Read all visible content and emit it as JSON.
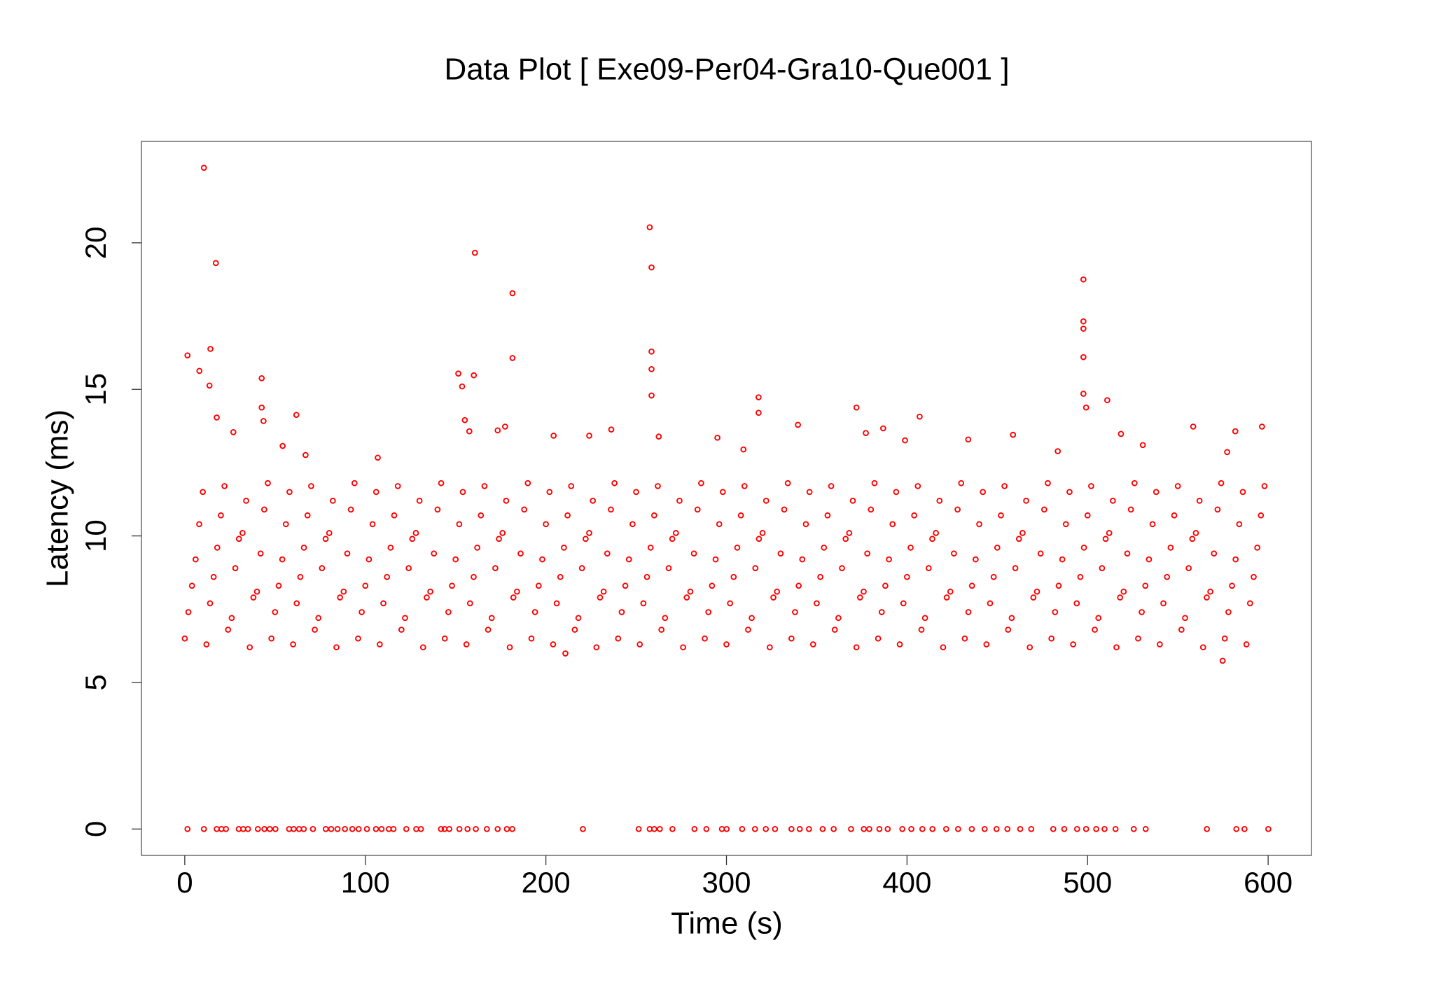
{
  "chart_data": {
    "type": "scatter",
    "title": "Data Plot [ Exe09-Per04-Gra10-Que001 ]",
    "x_label": "Time (s)",
    "y_label": "Latency (ms)",
    "color": "#ff0000",
    "xlim": [
      -24,
      624
    ],
    "xticks": [
      0,
      100,
      200,
      300,
      400,
      500,
      600
    ],
    "ylim": [
      -0.9,
      23.46
    ],
    "yticks": [
      0,
      5,
      10,
      15,
      20
    ],
    "x": [
      0,
      2,
      4,
      6,
      8,
      10,
      12,
      14,
      16,
      18,
      20,
      22,
      24,
      26,
      28,
      30,
      32,
      34,
      36,
      38,
      40,
      42,
      44,
      46,
      48,
      50,
      52,
      54,
      56,
      58,
      60,
      62,
      64,
      66,
      68,
      70,
      72,
      74,
      76,
      78,
      80,
      82,
      84,
      86,
      88,
      90,
      92,
      94,
      96,
      98,
      100,
      102,
      104,
      106,
      108,
      110,
      112,
      114,
      116,
      118,
      120,
      122,
      124,
      126,
      128,
      130,
      132,
      134,
      136,
      138,
      140,
      142,
      144,
      146,
      148,
      150,
      152,
      154,
      156,
      158,
      160,
      162,
      164,
      166,
      168,
      170,
      172,
      174,
      176,
      178,
      180,
      182,
      184,
      186,
      188,
      190,
      192,
      194,
      196,
      198,
      200,
      202,
      204,
      206,
      208,
      210,
      212,
      214,
      216,
      218,
      220,
      222,
      224,
      226,
      228,
      230,
      232,
      234,
      236,
      238,
      240,
      242,
      244,
      246,
      248,
      250,
      252,
      254,
      256,
      258,
      260,
      262,
      264,
      266,
      268,
      270,
      272,
      274,
      276,
      278,
      280,
      282,
      284,
      286,
      288,
      290,
      292,
      294,
      296,
      298,
      300,
      302,
      304,
      306,
      308,
      310,
      312,
      314,
      316,
      318,
      320,
      322,
      324,
      326,
      328,
      330,
      332,
      334,
      336,
      338,
      340,
      342,
      344,
      346,
      348,
      350,
      352,
      354,
      356,
      358,
      360,
      362,
      364,
      366,
      368,
      370,
      372,
      374,
      376,
      378,
      380,
      382,
      384,
      386,
      388,
      390,
      392,
      394,
      396,
      398,
      400,
      402,
      404,
      406,
      408,
      410,
      412,
      414,
      416,
      418,
      420,
      422,
      424,
      426,
      428,
      430,
      432,
      434,
      436,
      438,
      440,
      442,
      444,
      446,
      448,
      450,
      452,
      454,
      456,
      458,
      460,
      462,
      464,
      466,
      468,
      470,
      472,
      474,
      476,
      478,
      480,
      482,
      484,
      486,
      488,
      490,
      492,
      494,
      496,
      498,
      500,
      502,
      504,
      506,
      508,
      510,
      512,
      514,
      516,
      518,
      520,
      522,
      524,
      526,
      528,
      530,
      532,
      534,
      536,
      538,
      540,
      542,
      544,
      546,
      548,
      550,
      552,
      554,
      556,
      558,
      560,
      562,
      564,
      566,
      568,
      570,
      572,
      574,
      576,
      578,
      580,
      582,
      584,
      586,
      588,
      590,
      592,
      594,
      596,
      598,
      10.6,
      17.2,
      14.2,
      1.5,
      8.1,
      13.7,
      42.6,
      42.6,
      43.6,
      61.8,
      17.7,
      26.9,
      54.2,
      66.9,
      106.9,
      257.5,
      258.5,
      258.5,
      258.5,
      258.5,
      160.7,
      181.5,
      181.5,
      151.5,
      160.1,
      153.6,
      155.1,
      157.6,
      177.4,
      173.3,
      262.5,
      236.2,
      204.3,
      224.0,
      497.7,
      497.7,
      497.7,
      497.7,
      497.7,
      499.2,
      510.9,
      317.8,
      317.8,
      372.0,
      339.6,
      407.0,
      377.2,
      386.8,
      458.7,
      558.5,
      581.8,
      596.6,
      518.5,
      295.0,
      433.9,
      577.3,
      483.5,
      530.6,
      398.9,
      309.4,
      574.8,
      210.8,
      1.5,
      10.6,
      17.7,
      20.3,
      22.8,
      29.9,
      32.4,
      35.0,
      40.5,
      44.1,
      47.1,
      50.2,
      57.8,
      60.3,
      63.3,
      65.9,
      71.0,
      78.1,
      81.1,
      84.6,
      88.7,
      92.8,
      96.3,
      100.9,
      105.9,
      109.0,
      113.0,
      115.6,
      122.7,
      128.2,
      130.8,
      141.9,
      143.9,
      146.5,
      152.1,
      156.6,
      161.2,
      167.3,
      173.3,
      178.4,
      181.4,
      220.5,
      251.4,
      257.5,
      260.0,
      263.1,
      270.1,
      282.3,
      288.9,
      297.5,
      300.1,
      308.7,
      315.8,
      321.8,
      326.9,
      336.0,
      340.6,
      345.7,
      353.3,
      359.4,
      369.0,
      376.1,
      379.1,
      384.7,
      389.3,
      397.4,
      402.4,
      408.5,
      414.1,
      421.7,
      428.3,
      435.9,
      443.0,
      449.6,
      455.6,
      462.7,
      468.8,
      481.0,
      487.1,
      494.2,
      499.2,
      504.8,
      509.4,
      515.5,
      525.6,
      532.2,
      566.1,
      582.4,
      586.9,
      600.1
    ],
    "values": [
      6.5,
      7.4,
      8.3,
      9.2,
      10.4,
      11.5,
      6.3,
      7.7,
      8.6,
      9.6,
      10.7,
      11.7,
      6.8,
      7.2,
      8.9,
      9.9,
      10.1,
      11.2,
      6.2,
      7.9,
      8.1,
      9.4,
      10.9,
      11.8,
      6.5,
      7.4,
      8.3,
      9.2,
      10.4,
      11.5,
      6.3,
      7.7,
      8.6,
      9.6,
      10.7,
      11.7,
      6.8,
      7.2,
      8.9,
      9.9,
      10.1,
      11.2,
      6.2,
      7.9,
      8.1,
      9.4,
      10.9,
      11.8,
      6.5,
      7.4,
      8.3,
      9.2,
      10.4,
      11.5,
      6.3,
      7.7,
      8.6,
      9.6,
      10.7,
      11.7,
      6.8,
      7.2,
      8.9,
      9.9,
      10.1,
      11.2,
      6.2,
      7.9,
      8.1,
      9.4,
      10.9,
      11.8,
      6.5,
      7.4,
      8.3,
      9.2,
      10.4,
      11.5,
      6.3,
      7.7,
      8.6,
      9.6,
      10.7,
      11.7,
      6.8,
      7.2,
      8.9,
      9.9,
      10.1,
      11.2,
      6.2,
      7.9,
      8.1,
      9.4,
      10.9,
      11.8,
      6.5,
      7.4,
      8.3,
      9.2,
      10.4,
      11.5,
      6.3,
      7.7,
      8.6,
      9.6,
      10.7,
      11.7,
      6.8,
      7.2,
      8.9,
      9.9,
      10.1,
      11.2,
      6.2,
      7.9,
      8.1,
      9.4,
      10.9,
      11.8,
      6.5,
      7.4,
      8.3,
      9.2,
      10.4,
      11.5,
      6.3,
      7.7,
      8.6,
      9.6,
      10.7,
      11.7,
      6.8,
      7.2,
      8.9,
      9.9,
      10.1,
      11.2,
      6.2,
      7.9,
      8.1,
      9.4,
      10.9,
      11.8,
      6.5,
      7.4,
      8.3,
      9.2,
      10.4,
      11.5,
      6.3,
      7.7,
      8.6,
      9.6,
      10.7,
      11.7,
      6.8,
      7.2,
      8.9,
      9.9,
      10.1,
      11.2,
      6.2,
      7.9,
      8.1,
      9.4,
      10.9,
      11.8,
      6.5,
      7.4,
      8.3,
      9.2,
      10.4,
      11.5,
      6.3,
      7.7,
      8.6,
      9.6,
      10.7,
      11.7,
      6.8,
      7.2,
      8.9,
      9.9,
      10.1,
      11.2,
      6.2,
      7.9,
      8.1,
      9.4,
      10.9,
      11.8,
      6.5,
      7.4,
      8.3,
      9.2,
      10.4,
      11.5,
      6.3,
      7.7,
      8.6,
      9.6,
      10.7,
      11.7,
      6.8,
      7.2,
      8.9,
      9.9,
      10.1,
      11.2,
      6.2,
      7.9,
      8.1,
      9.4,
      10.9,
      11.8,
      6.5,
      7.4,
      8.3,
      9.2,
      10.4,
      11.5,
      6.3,
      7.7,
      8.6,
      9.6,
      10.7,
      11.7,
      6.8,
      7.2,
      8.9,
      9.9,
      10.1,
      11.2,
      6.2,
      7.9,
      8.1,
      9.4,
      10.9,
      11.8,
      6.5,
      7.4,
      8.3,
      9.2,
      10.4,
      11.5,
      6.3,
      7.7,
      8.6,
      9.6,
      10.7,
      11.7,
      6.8,
      7.2,
      8.9,
      9.9,
      10.1,
      11.2,
      6.2,
      7.9,
      8.1,
      9.4,
      10.9,
      11.8,
      6.5,
      7.4,
      8.3,
      9.2,
      10.4,
      11.5,
      6.3,
      7.7,
      8.6,
      9.6,
      10.7,
      11.7,
      6.8,
      7.2,
      8.9,
      9.9,
      10.1,
      11.2,
      6.2,
      7.9,
      8.1,
      9.4,
      10.9,
      11.8,
      6.5,
      7.4,
      8.3,
      9.2,
      10.4,
      11.5,
      6.3,
      7.7,
      8.6,
      9.6,
      10.7,
      11.7,
      22.56,
      19.31,
      16.38,
      16.16,
      15.63,
      15.13,
      15.38,
      14.38,
      13.92,
      14.13,
      14.04,
      13.54,
      13.07,
      12.76,
      12.67,
      20.53,
      19.16,
      16.29,
      15.69,
      14.79,
      19.66,
      18.28,
      16.07,
      15.54,
      15.48,
      15.1,
      13.95,
      13.57,
      13.73,
      13.6,
      13.39,
      13.63,
      13.42,
      13.42,
      18.75,
      17.32,
      17.07,
      16.1,
      14.85,
      14.38,
      14.63,
      14.73,
      14.2,
      14.38,
      13.79,
      14.07,
      13.51,
      13.67,
      13.45,
      13.73,
      13.57,
      13.73,
      13.48,
      13.35,
      13.29,
      12.86,
      12.89,
      13.1,
      13.26,
      12.95,
      5.74,
      5.99,
      0,
      0,
      0,
      0,
      0,
      0,
      0,
      0,
      0,
      0,
      0,
      0,
      0,
      0,
      0,
      0,
      0,
      0,
      0,
      0,
      0,
      0,
      0,
      0,
      0,
      0,
      0,
      0,
      0,
      0,
      0,
      0,
      0,
      0,
      0,
      0,
      0,
      0,
      0,
      0,
      0,
      0,
      0,
      0,
      0,
      0,
      0,
      0,
      0,
      0,
      0,
      0,
      0,
      0,
      0,
      0,
      0,
      0,
      0,
      0,
      0,
      0,
      0,
      0,
      0,
      0,
      0,
      0,
      0,
      0,
      0,
      0,
      0,
      0,
      0,
      0,
      0,
      0,
      0,
      0,
      0,
      0,
      0,
      0,
      0,
      0,
      0,
      0,
      0,
      0
    ]
  }
}
